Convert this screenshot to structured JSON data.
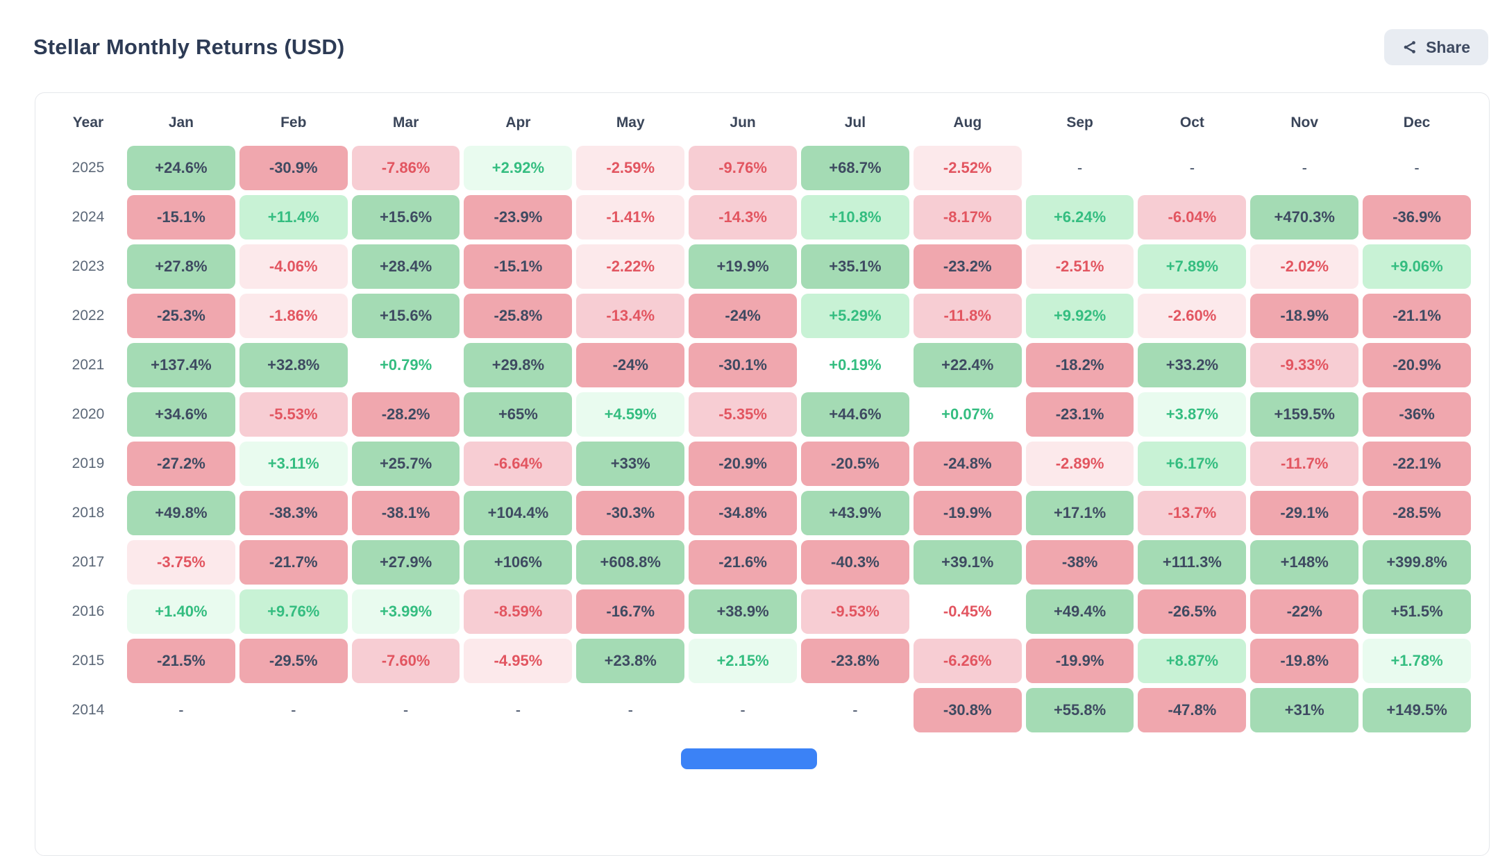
{
  "header": {
    "title": "Stellar Monthly Returns (USD)",
    "share_label": "Share"
  },
  "table": {
    "columns": [
      "Year",
      "Jan",
      "Feb",
      "Mar",
      "Apr",
      "May",
      "Jun",
      "Jul",
      "Aug",
      "Sep",
      "Oct",
      "Nov",
      "Dec"
    ],
    "rows": [
      {
        "year": "2025",
        "cells": [
          "+24.6%",
          "-30.9%",
          "-7.86%",
          "+2.92%",
          "-2.59%",
          "-9.76%",
          "+68.7%",
          "-2.52%",
          "-",
          "-",
          "-",
          "-"
        ]
      },
      {
        "year": "2024",
        "cells": [
          "-15.1%",
          "+11.4%",
          "+15.6%",
          "-23.9%",
          "-1.41%",
          "-14.3%",
          "+10.8%",
          "-8.17%",
          "+6.24%",
          "-6.04%",
          "+470.3%",
          "-36.9%"
        ]
      },
      {
        "year": "2023",
        "cells": [
          "+27.8%",
          "-4.06%",
          "+28.4%",
          "-15.1%",
          "-2.22%",
          "+19.9%",
          "+35.1%",
          "-23.2%",
          "-2.51%",
          "+7.89%",
          "-2.02%",
          "+9.06%"
        ]
      },
      {
        "year": "2022",
        "cells": [
          "-25.3%",
          "-1.86%",
          "+15.6%",
          "-25.8%",
          "-13.4%",
          "-24%",
          "+5.29%",
          "-11.8%",
          "+9.92%",
          "-2.60%",
          "-18.9%",
          "-21.1%"
        ]
      },
      {
        "year": "2021",
        "cells": [
          "+137.4%",
          "+32.8%",
          "+0.79%",
          "+29.8%",
          "-24%",
          "-30.1%",
          "+0.19%",
          "+22.4%",
          "-18.2%",
          "+33.2%",
          "-9.33%",
          "-20.9%"
        ]
      },
      {
        "year": "2020",
        "cells": [
          "+34.6%",
          "-5.53%",
          "-28.2%",
          "+65%",
          "+4.59%",
          "-5.35%",
          "+44.6%",
          "+0.07%",
          "-23.1%",
          "+3.87%",
          "+159.5%",
          "-36%"
        ]
      },
      {
        "year": "2019",
        "cells": [
          "-27.2%",
          "+3.11%",
          "+25.7%",
          "-6.64%",
          "+33%",
          "-20.9%",
          "-20.5%",
          "-24.8%",
          "-2.89%",
          "+6.17%",
          "-11.7%",
          "-22.1%"
        ]
      },
      {
        "year": "2018",
        "cells": [
          "+49.8%",
          "-38.3%",
          "-38.1%",
          "+104.4%",
          "-30.3%",
          "-34.8%",
          "+43.9%",
          "-19.9%",
          "+17.1%",
          "-13.7%",
          "-29.1%",
          "-28.5%"
        ]
      },
      {
        "year": "2017",
        "cells": [
          "-3.75%",
          "-21.7%",
          "+27.9%",
          "+106%",
          "+608.8%",
          "-21.6%",
          "-40.3%",
          "+39.1%",
          "-38%",
          "+111.3%",
          "+148%",
          "+399.8%"
        ]
      },
      {
        "year": "2016",
        "cells": [
          "+1.40%",
          "+9.76%",
          "+3.99%",
          "-8.59%",
          "-16.7%",
          "+38.9%",
          "-9.53%",
          "-0.45%",
          "+49.4%",
          "-26.5%",
          "-22%",
          "+51.5%"
        ]
      },
      {
        "year": "2015",
        "cells": [
          "-21.5%",
          "-29.5%",
          "-7.60%",
          "-4.95%",
          "+23.8%",
          "+2.15%",
          "-23.8%",
          "-6.26%",
          "-19.9%",
          "+8.87%",
          "-19.8%",
          "+1.78%"
        ]
      },
      {
        "year": "2014",
        "cells": [
          "-",
          "-",
          "-",
          "-",
          "-",
          "-",
          "-",
          "-30.8%",
          "+55.8%",
          "-47.8%",
          "+31%",
          "+149.5%"
        ]
      }
    ]
  },
  "chart_data": {
    "type": "heatmap",
    "title": "Stellar Monthly Returns (USD)",
    "unit": "percent",
    "columns": [
      "Jan",
      "Feb",
      "Mar",
      "Apr",
      "May",
      "Jun",
      "Jul",
      "Aug",
      "Sep",
      "Oct",
      "Nov",
      "Dec"
    ],
    "years": [
      "2025",
      "2024",
      "2023",
      "2022",
      "2021",
      "2020",
      "2019",
      "2018",
      "2017",
      "2016",
      "2015",
      "2014"
    ],
    "values": [
      [
        24.6,
        -30.9,
        -7.86,
        2.92,
        -2.59,
        -9.76,
        68.7,
        -2.52,
        null,
        null,
        null,
        null
      ],
      [
        -15.1,
        11.4,
        15.6,
        -23.9,
        -1.41,
        -14.3,
        10.8,
        -8.17,
        6.24,
        -6.04,
        470.3,
        -36.9
      ],
      [
        27.8,
        -4.06,
        28.4,
        -15.1,
        -2.22,
        19.9,
        35.1,
        -23.2,
        -2.51,
        7.89,
        -2.02,
        9.06
      ],
      [
        -25.3,
        -1.86,
        15.6,
        -25.8,
        -13.4,
        -24,
        5.29,
        -11.8,
        9.92,
        -2.6,
        -18.9,
        -21.1
      ],
      [
        137.4,
        32.8,
        0.79,
        29.8,
        -24,
        -30.1,
        0.19,
        22.4,
        -18.2,
        33.2,
        -9.33,
        -20.9
      ],
      [
        34.6,
        -5.53,
        -28.2,
        65,
        4.59,
        -5.35,
        44.6,
        0.07,
        -23.1,
        3.87,
        159.5,
        -36
      ],
      [
        -27.2,
        3.11,
        25.7,
        -6.64,
        33,
        -20.9,
        -20.5,
        -24.8,
        -2.89,
        6.17,
        -11.7,
        -22.1
      ],
      [
        49.8,
        -38.3,
        -38.1,
        104.4,
        -30.3,
        -34.8,
        43.9,
        -19.9,
        17.1,
        -13.7,
        -29.1,
        -28.5
      ],
      [
        -3.75,
        -21.7,
        27.9,
        106,
        608.8,
        -21.6,
        -40.3,
        39.1,
        -38,
        111.3,
        148,
        399.8
      ],
      [
        1.4,
        9.76,
        3.99,
        -8.59,
        -16.7,
        38.9,
        -9.53,
        -0.45,
        49.4,
        -26.5,
        -22,
        51.5
      ],
      [
        -21.5,
        -29.5,
        -7.6,
        -4.95,
        23.8,
        2.15,
        -23.8,
        -6.26,
        -19.9,
        8.87,
        -19.8,
        1.78
      ],
      [
        null,
        null,
        null,
        null,
        null,
        null,
        null,
        -30.8,
        55.8,
        -47.8,
        31,
        149.5
      ]
    ],
    "color_legend": {
      "strong_tier_abs_threshold": 15,
      "mid_tier_abs_threshold": 5,
      "faint_tier_abs_threshold": 1,
      "positive": "green",
      "negative": "red",
      "missing": "-"
    }
  },
  "colors": {
    "strong_green_bg": "#a4dbb4",
    "mid_green_bg": "#c8f2d5",
    "faint_green_bg": "#e9fbef",
    "strong_red_bg": "#f0a7ae",
    "mid_red_bg": "#f7cdd3",
    "faint_red_bg": "#fce9eb",
    "green_text": "#34bd80",
    "red_text": "#e25560",
    "dark_text": "#3e4a61",
    "year_text": "#5c6878",
    "header_text": "#3a4559",
    "title_text": "#2d3b55",
    "share_bg": "#e8ecf2",
    "card_border": "#e5e7eb",
    "accent_blue": "#3b82f6"
  }
}
